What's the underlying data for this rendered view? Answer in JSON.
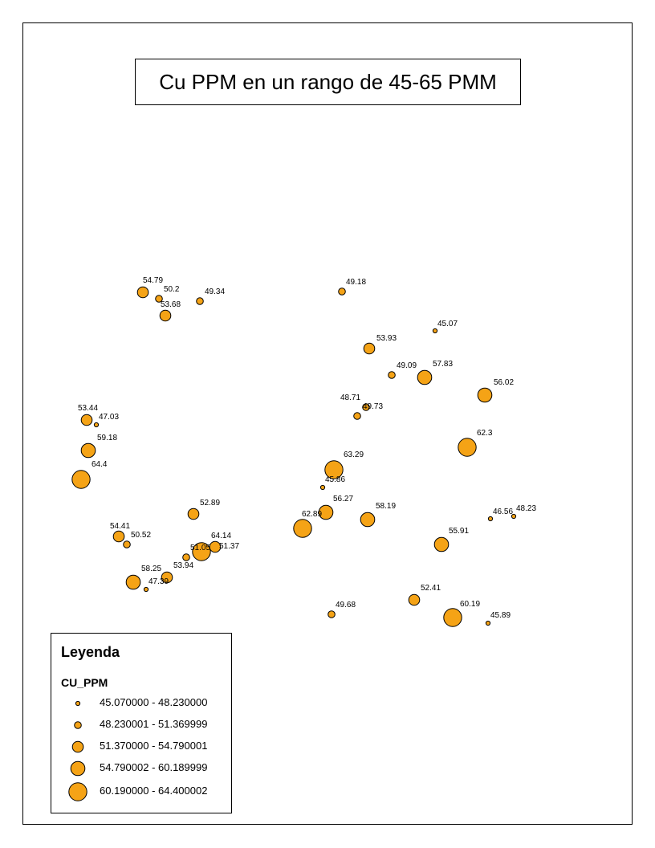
{
  "title": "Cu PPM en un rango de 45-65 PMM",
  "colors": {
    "fill": "#F5A316",
    "stroke": "#000000"
  },
  "legend": {
    "title": "Leyenda",
    "field": "CU_PPM",
    "classes": [
      {
        "label": "45.070000 - 48.230000",
        "size_class": 1
      },
      {
        "label": "48.230001 - 51.369999",
        "size_class": 2
      },
      {
        "label": "51.370000 - 54.790001",
        "size_class": 3
      },
      {
        "label": "54.790002 - 60.189999",
        "size_class": 4
      },
      {
        "label": "60.190000 - 64.400002",
        "size_class": 5
      }
    ]
  },
  "samples": [
    {
      "label": "54.79",
      "value": 54.79
    },
    {
      "label": "50.2",
      "value": 50.2
    },
    {
      "label": "49.34",
      "value": 49.34
    },
    {
      "label": "53.68",
      "value": 53.68
    },
    {
      "label": "49.18",
      "value": 49.18
    },
    {
      "label": "45.07",
      "value": 45.07
    },
    {
      "label": "53.93",
      "value": 53.93
    },
    {
      "label": "49.09",
      "value": 49.09
    },
    {
      "label": "57.83",
      "value": 57.83
    },
    {
      "label": "56.02",
      "value": 56.02
    },
    {
      "label": "48.71",
      "value": 48.71
    },
    {
      "label": "49.73",
      "value": 49.73
    },
    {
      "label": "53.44",
      "value": 53.44
    },
    {
      "label": "47.03",
      "value": 47.03
    },
    {
      "label": "59.18",
      "value": 59.18
    },
    {
      "label": "64.4",
      "value": 64.4
    },
    {
      "label": "62.3",
      "value": 62.3
    },
    {
      "label": "63.29",
      "value": 63.29
    },
    {
      "label": "45.86",
      "value": 45.86
    },
    {
      "label": "56.27",
      "value": 56.27
    },
    {
      "label": "62.89",
      "value": 62.89
    },
    {
      "label": "58.19",
      "value": 58.19
    },
    {
      "label": "52.89",
      "value": 52.89
    },
    {
      "label": "46.56",
      "value": 46.56
    },
    {
      "label": "48.23",
      "value": 48.23
    },
    {
      "label": "54.41",
      "value": 54.41
    },
    {
      "label": "50.52",
      "value": 50.52
    },
    {
      "label": "64.14",
      "value": 64.14
    },
    {
      "label": "51.05",
      "value": 51.05
    },
    {
      "label": "51.37",
      "value": 51.37
    },
    {
      "label": "55.91",
      "value": 55.91
    },
    {
      "label": "53.94",
      "value": 53.94
    },
    {
      "label": "58.25",
      "value": 58.25
    },
    {
      "label": "47.39",
      "value": 47.39
    },
    {
      "label": "52.41",
      "value": 52.41
    },
    {
      "label": "49.68",
      "value": 49.68
    },
    {
      "label": "60.19",
      "value": 60.19
    },
    {
      "label": "45.89",
      "value": 45.89
    }
  ]
}
